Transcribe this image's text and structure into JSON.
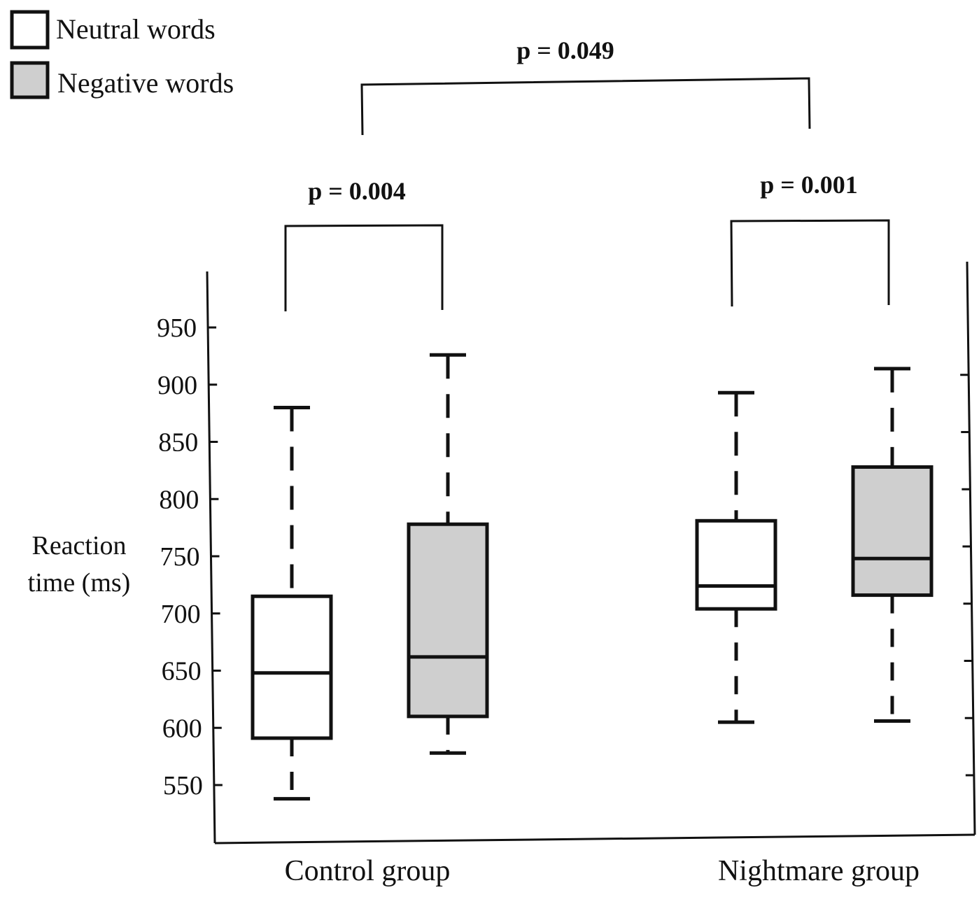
{
  "chart_data": {
    "type": "box",
    "title": "",
    "xlabel": "",
    "ylabel": [
      "Reaction",
      "time (ms)"
    ],
    "ylim": [
      500,
      1000
    ],
    "yticks": [
      550,
      600,
      650,
      700,
      750,
      800,
      850,
      900,
      950
    ],
    "categories": [
      "Control group",
      "Nightmare group"
    ],
    "grid": false,
    "legend_position": "top-left",
    "series": [
      {
        "name": "Neutral words",
        "fill": "#ffffff",
        "boxes": [
          {
            "min": 538,
            "q1": 591,
            "median": 648,
            "q3": 715,
            "max": 880
          },
          {
            "min": 605,
            "q1": 704,
            "median": 724,
            "q3": 781,
            "max": 893
          }
        ]
      },
      {
        "name": "Negative words",
        "fill": "#cfcfcf",
        "boxes": [
          {
            "min": 578,
            "q1": 610,
            "median": 662,
            "q3": 778,
            "max": 926
          },
          {
            "min": 606,
            "q1": 716,
            "median": 748,
            "q3": 828,
            "max": 914
          }
        ]
      }
    ],
    "annotations": [
      {
        "text": "p = 0.004",
        "compare": "Control group: Neutral words vs Negative words"
      },
      {
        "text": "p = 0.001",
        "compare": "Nightmare group: Neutral words vs Negative words"
      },
      {
        "text": "p = 0.049",
        "compare": "Control group vs Nightmare group"
      }
    ]
  }
}
